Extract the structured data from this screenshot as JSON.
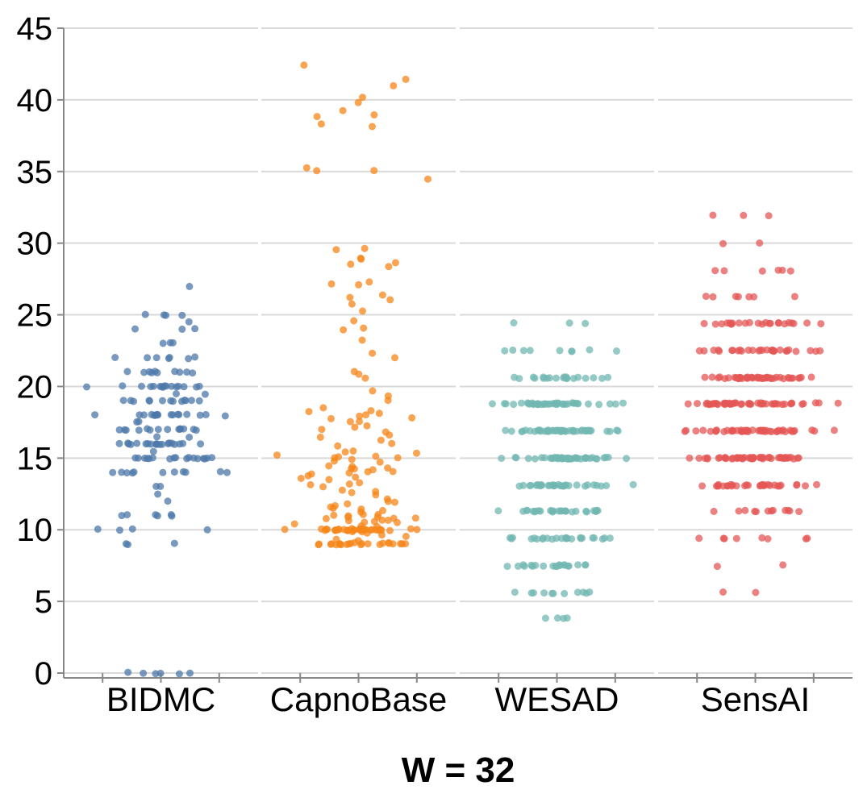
{
  "chart_data": {
    "type": "scatter",
    "subtype": "strip-jitter",
    "title": "",
    "xlabel": "W = 32",
    "ylabel": "",
    "ylim": [
      0,
      45
    ],
    "yticks": [
      0,
      5,
      10,
      15,
      20,
      25,
      30,
      35,
      40,
      45
    ],
    "grid": true,
    "categories": [
      "BIDMC",
      "CapnoBase",
      "WESAD",
      "SensAI"
    ],
    "series": [
      {
        "name": "BIDMC",
        "color": "#4c78a8",
        "values": [
          27,
          25,
          25,
          25,
          25,
          24.5,
          24,
          24,
          24,
          23,
          23,
          23,
          22,
          22,
          22,
          22,
          22,
          22,
          22,
          21,
          21,
          21,
          21,
          21,
          21,
          21,
          21,
          21,
          21,
          20,
          20,
          20,
          20,
          20,
          20,
          20,
          20,
          20,
          20,
          20,
          20,
          20,
          20,
          20,
          20,
          19.5,
          19.5,
          19,
          19,
          19,
          19,
          19,
          19,
          19,
          19,
          19,
          19,
          19,
          19,
          19,
          18,
          18,
          18,
          18,
          18,
          18,
          18,
          18,
          18,
          18,
          18,
          18,
          18,
          18,
          18,
          18,
          18,
          17.5,
          17.5,
          17,
          17,
          17,
          17,
          17,
          17,
          17,
          17,
          17,
          17,
          17,
          17,
          17,
          17,
          16.5,
          16.5,
          16,
          16,
          16,
          16,
          16,
          16,
          16,
          16,
          16,
          16,
          16,
          16,
          16,
          16,
          16,
          16,
          16,
          16,
          16,
          16,
          15.5,
          15,
          15,
          15,
          15,
          15,
          15,
          15,
          15,
          15,
          15,
          15,
          15,
          15,
          15,
          15,
          15,
          15,
          14,
          14,
          14,
          14,
          14,
          14,
          14,
          14,
          14,
          14,
          14,
          13,
          13,
          12.5,
          12,
          11,
          11,
          11,
          11,
          11,
          11,
          10,
          10,
          10,
          10,
          9,
          9,
          9,
          0,
          0,
          0,
          0,
          0,
          0
        ]
      },
      {
        "name": "CapnoBase",
        "color": "#f58518",
        "values": [
          42.4,
          41.4,
          41,
          40.2,
          39.8,
          39.2,
          39,
          38.8,
          38.3,
          38.1,
          35.3,
          35.1,
          35.1,
          34.5,
          29.6,
          29.6,
          29,
          28.9,
          28.6,
          28.5,
          28.4,
          27.3,
          27.1,
          27.1,
          26.4,
          26.2,
          26,
          25.7,
          25.3,
          24.6,
          24.1,
          24,
          23.2,
          22.3,
          22,
          21,
          20.8,
          20.6,
          19.7,
          19.3,
          19,
          18.5,
          18.3,
          18.2,
          18.1,
          18,
          17.9,
          17.8,
          17.8,
          17.6,
          17.5,
          17.3,
          17.2,
          17,
          16.8,
          16.6,
          16.5,
          16.3,
          16,
          15.8,
          15.5,
          15.4,
          15.3,
          15.2,
          15.1,
          15.1,
          15,
          15,
          14.9,
          14.8,
          14.7,
          14.5,
          14.4,
          14.3,
          14.3,
          14.2,
          14.2,
          14.1,
          14,
          14,
          13.9,
          13.8,
          13.7,
          13.6,
          13.5,
          13.3,
          13.2,
          13.1,
          13,
          12.8,
          12.7,
          12.6,
          12.4,
          12.2,
          12,
          11.9,
          11.8,
          11.7,
          11.6,
          11.5,
          11.4,
          11.3,
          11.2,
          11.1,
          11,
          11,
          11,
          10.9,
          10.9,
          10.8,
          10.8,
          10.8,
          10.7,
          10.7,
          10.6,
          10.6,
          10.5,
          10.5,
          10.4,
          10.3,
          10.2,
          10.1,
          10.1,
          10,
          10,
          10,
          10,
          10,
          10,
          10,
          10,
          10,
          10,
          10,
          10,
          10,
          10,
          10,
          10,
          10,
          10,
          10,
          10,
          10,
          10,
          10,
          10,
          10,
          10,
          10,
          10,
          10,
          10,
          9.9,
          9.9,
          9.8,
          9.8,
          9.6,
          9.5,
          9.3,
          9.2,
          9.1,
          9.1,
          9,
          9,
          9,
          9,
          9,
          9,
          9,
          9,
          9,
          9,
          9,
          9,
          9,
          9,
          9,
          9,
          9,
          9,
          9,
          9,
          9
        ]
      },
      {
        "name": "WESAD",
        "color": "#72b7b2",
        "values": [
          24.4,
          24.4,
          24.4,
          22.5,
          22.5,
          22.5,
          22.5,
          22.5,
          22.5,
          22.5,
          22.5,
          22.5,
          20.6,
          20.6,
          20.6,
          20.6,
          20.6,
          20.6,
          20.6,
          20.6,
          20.6,
          20.6,
          20.6,
          20.6,
          20.6,
          20.6,
          20.6,
          20.6,
          20.6,
          20.6,
          20.6,
          20.6,
          18.8,
          18.8,
          18.8,
          18.8,
          18.8,
          18.8,
          18.8,
          18.8,
          18.8,
          18.8,
          18.8,
          18.8,
          18.8,
          18.8,
          18.8,
          18.8,
          18.8,
          18.8,
          18.8,
          18.8,
          18.8,
          18.8,
          18.8,
          18.8,
          18.8,
          18.8,
          18.8,
          18.8,
          18.8,
          18.8,
          18.8,
          18.8,
          18.8,
          18.8,
          18.8,
          18.8,
          18.8,
          18.8,
          18.8,
          18.8,
          18.8,
          16.9,
          16.9,
          16.9,
          16.9,
          16.9,
          16.9,
          16.9,
          16.9,
          16.9,
          16.9,
          16.9,
          16.9,
          16.9,
          16.9,
          16.9,
          16.9,
          16.9,
          16.9,
          16.9,
          16.9,
          16.9,
          16.9,
          16.9,
          16.9,
          16.9,
          16.9,
          16.9,
          16.9,
          16.9,
          16.9,
          16.9,
          16.9,
          16.9,
          16.9,
          16.9,
          16.9,
          16.9,
          16.9,
          16.9,
          16.9,
          16.9,
          16.9,
          16.9,
          16.9,
          16.9,
          16.9,
          15,
          15,
          15,
          15,
          15,
          15,
          15,
          15,
          15,
          15,
          15,
          15,
          15,
          15,
          15,
          15,
          15,
          15,
          15,
          15,
          15,
          15,
          15,
          15,
          15,
          15,
          15,
          15,
          15,
          15,
          15,
          15,
          15,
          15,
          15,
          15,
          15,
          15,
          15,
          15,
          15,
          15,
          15,
          15,
          15,
          15,
          13.1,
          13.1,
          13.1,
          13.1,
          13.1,
          13.1,
          13.1,
          13.1,
          13.1,
          13.1,
          13.1,
          13.1,
          13.1,
          13.1,
          13.1,
          13.1,
          13.1,
          13.1,
          13.1,
          13.1,
          13.1,
          13.1,
          13.1,
          13.1,
          13.1,
          13.1,
          13.1,
          13.1,
          13.1,
          13.1,
          13.1,
          13.1,
          11.3,
          11.3,
          11.3,
          11.3,
          11.3,
          11.3,
          11.3,
          11.3,
          11.3,
          11.3,
          11.3,
          11.3,
          11.3,
          11.3,
          11.3,
          11.3,
          11.3,
          11.3,
          11.3,
          11.3,
          11.3,
          11.3,
          11.3,
          11.3,
          11.3,
          11.3,
          11.3,
          11.3,
          9.4,
          9.4,
          9.4,
          9.4,
          9.4,
          9.4,
          9.4,
          9.4,
          9.4,
          9.4,
          9.4,
          9.4,
          9.4,
          9.4,
          9.4,
          9.4,
          9.4,
          9.4,
          9.4,
          9.4,
          9.4,
          9.4,
          9.4,
          9.4,
          9.4,
          7.5,
          7.5,
          7.5,
          7.5,
          7.5,
          7.5,
          7.5,
          7.5,
          7.5,
          7.5,
          7.5,
          7.5,
          7.5,
          7.5,
          7.5,
          7.5,
          7.5,
          7.5,
          7.5,
          7.5,
          5.6,
          5.6,
          5.6,
          5.6,
          5.6,
          5.6,
          5.6,
          5.6,
          5.6,
          5.6,
          5.6,
          3.8,
          3.8,
          3.8,
          3.8
        ]
      },
      {
        "name": "SensAI",
        "color": "#e45756",
        "values": [
          31.9,
          31.9,
          31.9,
          30,
          30,
          28.1,
          28.1,
          28.1,
          28.1,
          28.1,
          28.1,
          26.3,
          26.3,
          26.3,
          26.3,
          26.3,
          26.3,
          26.3,
          24.4,
          24.4,
          24.4,
          24.4,
          24.4,
          24.4,
          24.4,
          24.4,
          24.4,
          24.4,
          24.4,
          24.4,
          24.4,
          24.4,
          24.4,
          24.4,
          24.4,
          24.4,
          24.4,
          24.4,
          24.4,
          24.4,
          24.4,
          24.4,
          22.5,
          22.5,
          22.5,
          22.5,
          22.5,
          22.5,
          22.5,
          22.5,
          22.5,
          22.5,
          22.5,
          22.5,
          22.5,
          22.5,
          22.5,
          22.5,
          22.5,
          22.5,
          22.5,
          22.5,
          22.5,
          22.5,
          22.5,
          22.5,
          22.5,
          22.5,
          22.5,
          22.5,
          22.5,
          20.6,
          20.6,
          20.6,
          20.6,
          20.6,
          20.6,
          20.6,
          20.6,
          20.6,
          20.6,
          20.6,
          20.6,
          20.6,
          20.6,
          20.6,
          20.6,
          20.6,
          20.6,
          20.6,
          20.6,
          20.6,
          20.6,
          20.6,
          20.6,
          20.6,
          20.6,
          20.6,
          20.6,
          20.6,
          20.6,
          20.6,
          20.6,
          20.6,
          20.6,
          20.6,
          20.6,
          20.6,
          20.6,
          20.6,
          20.6,
          20.6,
          20.6,
          20.6,
          20.6,
          20.6,
          20.6,
          20.6,
          18.8,
          18.8,
          18.8,
          18.8,
          18.8,
          18.8,
          18.8,
          18.8,
          18.8,
          18.8,
          18.8,
          18.8,
          18.8,
          18.8,
          18.8,
          18.8,
          18.8,
          18.8,
          18.8,
          18.8,
          18.8,
          18.8,
          18.8,
          18.8,
          18.8,
          18.8,
          18.8,
          18.8,
          18.8,
          18.8,
          18.8,
          18.8,
          18.8,
          18.8,
          18.8,
          18.8,
          18.8,
          18.8,
          18.8,
          18.8,
          18.8,
          18.8,
          18.8,
          18.8,
          18.8,
          18.8,
          18.8,
          18.8,
          18.8,
          18.8,
          16.9,
          16.9,
          16.9,
          16.9,
          16.9,
          16.9,
          16.9,
          16.9,
          16.9,
          16.9,
          16.9,
          16.9,
          16.9,
          16.9,
          16.9,
          16.9,
          16.9,
          16.9,
          16.9,
          16.9,
          16.9,
          16.9,
          16.9,
          16.9,
          16.9,
          16.9,
          16.9,
          16.9,
          16.9,
          16.9,
          16.9,
          16.9,
          16.9,
          16.9,
          16.9,
          16.9,
          16.9,
          16.9,
          16.9,
          16.9,
          16.9,
          16.9,
          16.9,
          16.9,
          16.9,
          16.9,
          16.9,
          16.9,
          16.9,
          16.9,
          16.9,
          16.9,
          15,
          15,
          15,
          15,
          15,
          15,
          15,
          15,
          15,
          15,
          15,
          15,
          15,
          15,
          15,
          15,
          15,
          15,
          15,
          15,
          15,
          15,
          15,
          15,
          15,
          15,
          15,
          15,
          15,
          15,
          15,
          15,
          15,
          15,
          15,
          15,
          15,
          15,
          15,
          15,
          15,
          15,
          15,
          15,
          15,
          15,
          15,
          15,
          15,
          15,
          13.1,
          13.1,
          13.1,
          13.1,
          13.1,
          13.1,
          13.1,
          13.1,
          13.1,
          13.1,
          13.1,
          13.1,
          13.1,
          13.1,
          13.1,
          13.1,
          13.1,
          13.1,
          13.1,
          13.1,
          13.1,
          13.1,
          13.1,
          13.1,
          13.1,
          13.1,
          13.1,
          13.1,
          13.1,
          13.1,
          13.1,
          13.1,
          11.3,
          11.3,
          11.3,
          11.3,
          11.3,
          11.3,
          11.3,
          11.3,
          11.3,
          11.3,
          11.3,
          11.3,
          9.4,
          9.4,
          9.4,
          9.4,
          9.4,
          9.4,
          9.4,
          9.4,
          7.5,
          7.5,
          5.6,
          5.6
        ]
      }
    ]
  }
}
